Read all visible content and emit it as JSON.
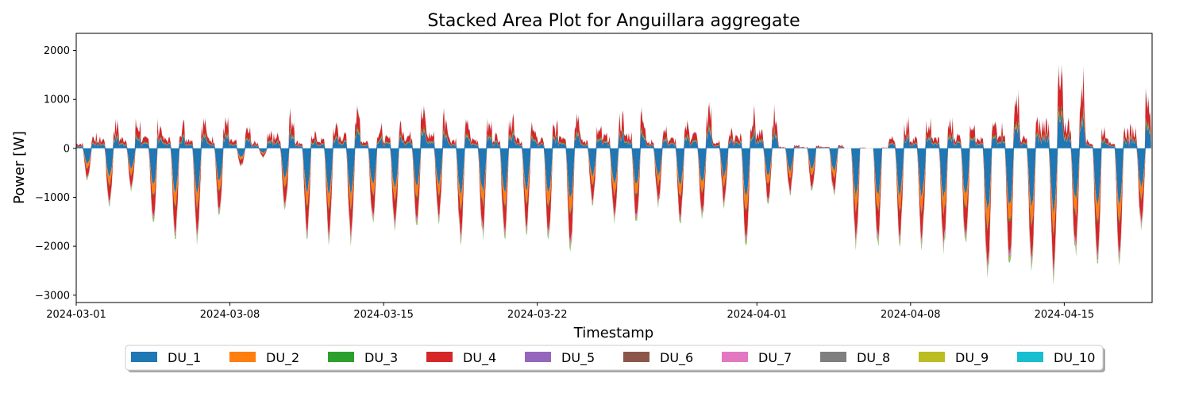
{
  "chart_data": {
    "type": "area",
    "stacked": true,
    "title": "Stacked Area Plot for Anguillara aggregate",
    "xlabel": "Timestamp",
    "ylabel": "Power [W]",
    "xlim": [
      "2024-03-01",
      "2024-04-19"
    ],
    "ylim": [
      -3150,
      2350
    ],
    "x_ticks": [
      "2024-03-01",
      "2024-03-08",
      "2024-03-15",
      "2024-03-22",
      "2024-04-01",
      "2024-04-08",
      "2024-04-15"
    ],
    "y_ticks": [
      2000,
      1000,
      0,
      -1000,
      -2000,
      -3000
    ],
    "y_tick_labels": [
      "2000",
      "1000",
      "0",
      "−1000",
      "−2000",
      "−3000"
    ],
    "grid": false,
    "legend_position": "bottom-center",
    "dates": [
      "2024-03-01",
      "2024-03-02",
      "2024-03-03",
      "2024-03-04",
      "2024-03-05",
      "2024-03-06",
      "2024-03-07",
      "2024-03-08",
      "2024-03-09",
      "2024-03-10",
      "2024-03-11",
      "2024-03-12",
      "2024-03-13",
      "2024-03-14",
      "2024-03-15",
      "2024-03-16",
      "2024-03-17",
      "2024-03-18",
      "2024-03-19",
      "2024-03-20",
      "2024-03-21",
      "2024-03-22",
      "2024-03-23",
      "2024-03-24",
      "2024-03-25",
      "2024-03-26",
      "2024-03-27",
      "2024-03-28",
      "2024-03-29",
      "2024-03-30",
      "2024-03-31",
      "2024-04-01",
      "2024-04-02",
      "2024-04-03",
      "2024-04-04",
      "2024-04-05",
      "2024-04-06",
      "2024-04-07",
      "2024-04-08",
      "2024-04-09",
      "2024-04-10",
      "2024-04-11",
      "2024-04-12",
      "2024-04-13",
      "2024-04-14",
      "2024-04-15",
      "2024-04-16",
      "2024-04-17",
      "2024-04-18"
    ],
    "daily_peak_consumption_W": [
      350,
      650,
      700,
      650,
      650,
      750,
      700,
      500,
      400,
      900,
      450,
      600,
      900,
      550,
      700,
      950,
      1000,
      650,
      650,
      900,
      650,
      600,
      1000,
      500,
      850,
      1000,
      500,
      650,
      1000,
      450,
      950,
      1000,
      100,
      80,
      80,
      20,
      20,
      700,
      700,
      700,
      900,
      650,
      1500,
      700,
      1800,
      1800,
      550,
      500,
      1300
    ],
    "daily_min_generation_W": [
      -700,
      -1300,
      -900,
      -1700,
      -1950,
      -2100,
      -1500,
      -400,
      -200,
      -1400,
      -1900,
      -2000,
      -2050,
      -1700,
      -1800,
      -1800,
      -1600,
      -2000,
      -1950,
      -2050,
      -1800,
      -2000,
      -2350,
      -1250,
      -1600,
      -1700,
      -1250,
      -1600,
      -1550,
      -1250,
      -2250,
      -1200,
      -1000,
      -950,
      -1000,
      -2100,
      -2100,
      -2050,
      -2100,
      -2200,
      -2200,
      -2800,
      -2700,
      -2600,
      -2800,
      -2350,
      -2650,
      -2400,
      -1800
    ],
    "series": [
      {
        "name": "DU_1",
        "color": "#1f77b4",
        "consumption_share": 0.42,
        "generation_share": 0.48
      },
      {
        "name": "DU_2",
        "color": "#ff7f0e",
        "consumption_share": 0.03,
        "generation_share": 0.14
      },
      {
        "name": "DU_3",
        "color": "#2ca02c",
        "consumption_share": 0.06,
        "generation_share": 0.02
      },
      {
        "name": "DU_4",
        "color": "#d62728",
        "consumption_share": 0.43,
        "generation_share": 0.26
      },
      {
        "name": "DU_5",
        "color": "#9467bd",
        "consumption_share": 0.01,
        "generation_share": 0.01
      },
      {
        "name": "DU_6",
        "color": "#8c564b",
        "consumption_share": 0.01,
        "generation_share": 0.01
      },
      {
        "name": "DU_7",
        "color": "#e377c2",
        "consumption_share": 0.02,
        "generation_share": 0.03
      },
      {
        "name": "DU_8",
        "color": "#7f7f7f",
        "consumption_share": 0.0,
        "generation_share": 0.01
      },
      {
        "name": "DU_9",
        "color": "#bcbd22",
        "consumption_share": 0.01,
        "generation_share": 0.03
      },
      {
        "name": "DU_10",
        "color": "#17becf",
        "consumption_share": 0.01,
        "generation_share": 0.01
      }
    ]
  }
}
